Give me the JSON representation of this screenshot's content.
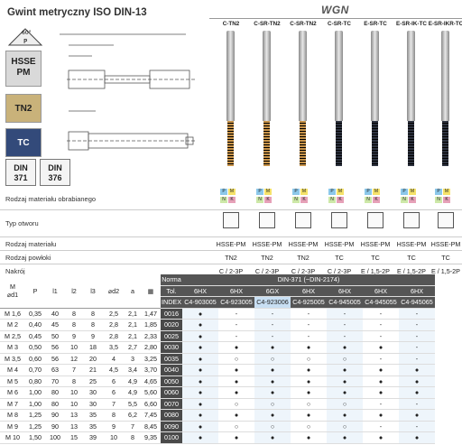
{
  "header": {
    "title": "Gwint metryczny ISO DIN-13",
    "brand": "WGN"
  },
  "columns": [
    {
      "name": "C-TN2",
      "shank_color": "#b9b9b9",
      "body_color": "#c8944a"
    },
    {
      "name": "C-SR-TN2",
      "shank_color": "#b9b9b9",
      "body_color": "#c8944a"
    },
    {
      "name": "C-SR-TN2",
      "shank_color": "#b9b9b9",
      "body_color": "#c8944a"
    },
    {
      "name": "C-SR-TC",
      "shank_color": "#b9b9b9",
      "body_color": "#2e3340"
    },
    {
      "name": "E-SR-TC",
      "shank_color": "#b9b9b9",
      "body_color": "#2e3340"
    },
    {
      "name": "E-SR-IK-TC",
      "shank_color": "#b9b9b9",
      "body_color": "#2e3340"
    },
    {
      "name": "E-SR-IKR-TC",
      "shank_color": "#b9b9b9",
      "body_color": "#2e3340"
    }
  ],
  "legend": {
    "hsse": "HSSE\nPM",
    "tn2": "TN2",
    "tc": "TC",
    "din371": "DIN\n371",
    "din376": "DIN\n376",
    "angle": "60°",
    "pitch": "P"
  },
  "rows": {
    "material_label": "Rodzaj materiału obrabianego",
    "hole_label": "Typ otworu",
    "tool_material_label": "Rodzaj materiału",
    "coating_label": "Rodzaj powłoki",
    "tolerance_label": "Nakrój",
    "tool_material": [
      "HSSE-PM",
      "HSSE-PM",
      "HSSE-PM",
      "HSSE-PM",
      "HSSE-PM",
      "HSSE-PM",
      "HSSE-PM"
    ],
    "coating": [
      "TN2",
      "TN2",
      "TN2",
      "TC",
      "TC",
      "TC",
      "TC"
    ],
    "chamfer": [
      "C / 2-3P",
      "C / 2-3P",
      "C / 2-3P",
      "C / 2-3P",
      "E / 1,5-2P",
      "E / 1,5-2P",
      "E / 1,5-2P"
    ]
  },
  "table": {
    "headers": [
      "M\n⌀d1",
      "P",
      "l1",
      "l2",
      "l3",
      "⌀d2",
      "a"
    ],
    "norma_label": "Norma",
    "norma_value": "DIN-371 (~DIN-2174)",
    "tol_label": "Tol.",
    "tols": [
      "6HX",
      "6HX",
      "6GX",
      "6HX",
      "6HX",
      "6HX",
      "6HX"
    ],
    "index_label": "INDEX",
    "indexes": [
      "C4-903005",
      "C4-923005",
      "C4-923006",
      "C4-925005",
      "C4-945005",
      "C4-945055",
      "C4-945065"
    ],
    "rows": [
      {
        "m": "M 1,6",
        "p": "0,35",
        "l1": "40",
        "l2": "8",
        "l3": "8",
        "d2": "2,5",
        "a": "2,1",
        "d": "1,47",
        "idx": "0016",
        "marks": [
          "●",
          "-",
          "-",
          "-",
          "-",
          "-",
          "-"
        ]
      },
      {
        "m": "M 2",
        "p": "0,40",
        "l1": "45",
        "l2": "8",
        "l3": "8",
        "d2": "2,8",
        "a": "2,1",
        "d": "1,85",
        "idx": "0020",
        "marks": [
          "●",
          "-",
          "-",
          "-",
          "-",
          "-",
          "-"
        ]
      },
      {
        "m": "M 2,5",
        "p": "0,45",
        "l1": "50",
        "l2": "9",
        "l3": "9",
        "d2": "2,8",
        "a": "2,1",
        "d": "2,33",
        "idx": "0025",
        "marks": [
          "●",
          "-",
          "-",
          "-",
          "-",
          "-",
          "-"
        ]
      },
      {
        "m": "M 3",
        "p": "0,50",
        "l1": "56",
        "l2": "10",
        "l3": "18",
        "d2": "3,5",
        "a": "2,7",
        "d": "2,80",
        "idx": "0030",
        "marks": [
          "●",
          "●",
          "●",
          "●",
          "●",
          "●",
          "-"
        ]
      },
      {
        "m": "M 3,5",
        "p": "0,60",
        "l1": "56",
        "l2": "12",
        "l3": "20",
        "d2": "4",
        "a": "3",
        "d": "3,25",
        "idx": "0035",
        "marks": [
          "●",
          "○",
          "○",
          "○",
          "○",
          "-",
          "-"
        ]
      },
      {
        "m": "M 4",
        "p": "0,70",
        "l1": "63",
        "l2": "7",
        "l3": "21",
        "d2": "4,5",
        "a": "3,4",
        "d": "3,70",
        "idx": "0040",
        "marks": [
          "●",
          "●",
          "●",
          "●",
          "●",
          "●",
          "●"
        ]
      },
      {
        "m": "M 5",
        "p": "0,80",
        "l1": "70",
        "l2": "8",
        "l3": "25",
        "d2": "6",
        "a": "4,9",
        "d": "4,65",
        "idx": "0050",
        "marks": [
          "●",
          "●",
          "●",
          "●",
          "●",
          "●",
          "●"
        ]
      },
      {
        "m": "M 6",
        "p": "1,00",
        "l1": "80",
        "l2": "10",
        "l3": "30",
        "d2": "6",
        "a": "4,9",
        "d": "5,60",
        "idx": "0060",
        "marks": [
          "●",
          "●",
          "●",
          "●",
          "●",
          "●",
          "●"
        ]
      },
      {
        "m": "M 7",
        "p": "1,00",
        "l1": "80",
        "l2": "10",
        "l3": "30",
        "d2": "7",
        "a": "5,5",
        "d": "6,60",
        "idx": "0070",
        "marks": [
          "●",
          "○",
          "○",
          "○",
          "○",
          "-",
          "-"
        ]
      },
      {
        "m": "M 8",
        "p": "1,25",
        "l1": "90",
        "l2": "13",
        "l3": "35",
        "d2": "8",
        "a": "6,2",
        "d": "7,45",
        "idx": "0080",
        "marks": [
          "●",
          "●",
          "●",
          "●",
          "●",
          "●",
          "●"
        ]
      },
      {
        "m": "M 9",
        "p": "1,25",
        "l1": "90",
        "l2": "13",
        "l3": "35",
        "d2": "9",
        "a": "7",
        "d": "8,45",
        "idx": "0090",
        "marks": [
          "●",
          "○",
          "○",
          "○",
          "○",
          "-",
          "-"
        ]
      },
      {
        "m": "M 10",
        "p": "1,50",
        "l1": "100",
        "l2": "15",
        "l3": "39",
        "d2": "10",
        "a": "8",
        "d": "9,35",
        "idx": "0100",
        "marks": [
          "●",
          "●",
          "●",
          "●",
          "●",
          "●",
          "●"
        ]
      }
    ]
  }
}
